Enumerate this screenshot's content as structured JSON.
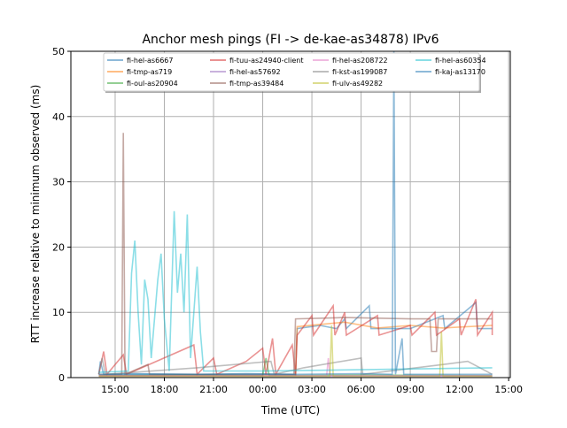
{
  "chart_data": {
    "type": "line",
    "title": "Anchor mesh pings (FI -> de-kae-as34878) IPv6",
    "xlabel": "Time (UTC)",
    "ylabel": "RTT increase relative to minimum observed (ms)",
    "xlim": [
      12.3,
      39.1
    ],
    "ylim": [
      0,
      50
    ],
    "x_unit": "hours since 00:00 of first day",
    "xticks": [
      15,
      18,
      21,
      24,
      27,
      30,
      33,
      36,
      39
    ],
    "xtick_labels": [
      "15:00",
      "18:00",
      "21:00",
      "00:00",
      "03:00",
      "06:00",
      "09:00",
      "12:00",
      "15:00"
    ],
    "yticks": [
      0,
      10,
      20,
      30,
      40,
      50
    ],
    "ytick_labels": [
      "0",
      "10",
      "20",
      "30",
      "40",
      "50"
    ],
    "grid": true,
    "legend_position": "top-center",
    "series": [
      {
        "name": "fi-hel-as6667",
        "color": "#1f77b4",
        "points": [
          [
            14,
            0.5
          ],
          [
            14.1,
            2.5
          ],
          [
            14.3,
            0.5
          ],
          [
            16,
            0.6
          ],
          [
            20,
            0.5
          ],
          [
            23,
            0.6
          ],
          [
            26,
            0.5
          ],
          [
            26.1,
            7.5
          ],
          [
            27.5,
            8
          ],
          [
            28.5,
            7.5
          ],
          [
            29,
            9
          ],
          [
            29.1,
            7.5
          ],
          [
            30.5,
            11
          ],
          [
            30.6,
            7.5
          ],
          [
            33,
            7.5
          ],
          [
            35,
            9.5
          ],
          [
            35.1,
            7.5
          ],
          [
            37,
            11.5
          ],
          [
            37.1,
            7.5
          ],
          [
            38,
            7.5
          ]
        ]
      },
      {
        "name": "fi-tmp-as719",
        "color": "#ff7f0e",
        "points": [
          [
            14,
            0.3
          ],
          [
            20,
            0.3
          ],
          [
            26,
            0.3
          ],
          [
            26.1,
            7.8
          ],
          [
            29,
            8.5
          ],
          [
            31,
            7.6
          ],
          [
            33,
            8
          ],
          [
            35,
            7.6
          ],
          [
            38,
            8
          ]
        ]
      },
      {
        "name": "fi-oul-as20904",
        "color": "#2ca02c",
        "points": [
          [
            14,
            0.3
          ],
          [
            19,
            0.4
          ],
          [
            24,
            0.3
          ],
          [
            24.2,
            3
          ],
          [
            24.4,
            0.3
          ],
          [
            30,
            0.4
          ],
          [
            38,
            0.3
          ]
        ]
      },
      {
        "name": "fi-tuu-as24940-client",
        "color": "#d62728",
        "points": [
          [
            14,
            0.5
          ],
          [
            14.3,
            4
          ],
          [
            14.5,
            0.5
          ],
          [
            15.5,
            3.5
          ],
          [
            15.7,
            0.5
          ],
          [
            19.8,
            5
          ],
          [
            20,
            0.5
          ],
          [
            21,
            3
          ],
          [
            21.2,
            0.5
          ],
          [
            23,
            2.5
          ],
          [
            24,
            4.5
          ],
          [
            24.2,
            0.5
          ],
          [
            24.6,
            6
          ],
          [
            24.8,
            0.5
          ],
          [
            25.8,
            5
          ],
          [
            26,
            0.3
          ],
          [
            26.1,
            6.5
          ],
          [
            27,
            9.5
          ],
          [
            27.1,
            6.5
          ],
          [
            28.3,
            11
          ],
          [
            28.4,
            6.5
          ],
          [
            29,
            10
          ],
          [
            29.1,
            6.5
          ],
          [
            31,
            9.5
          ],
          [
            31.1,
            6.5
          ],
          [
            33,
            8
          ],
          [
            33.1,
            6.5
          ],
          [
            34.5,
            10
          ],
          [
            34.6,
            6.5
          ],
          [
            36,
            9
          ],
          [
            36.1,
            6.5
          ],
          [
            37,
            12
          ],
          [
            37.1,
            6.5
          ],
          [
            38,
            10
          ],
          [
            38,
            6.5
          ]
        ]
      },
      {
        "name": "fi-hel-as57692",
        "color": "#9467bd",
        "points": [
          [
            14,
            0.2
          ],
          [
            26,
            0.2
          ],
          [
            38,
            0.2
          ]
        ]
      },
      {
        "name": "fi-tmp-as39484",
        "color": "#8c564b",
        "points": [
          [
            14,
            0.5
          ],
          [
            15.4,
            0.5
          ],
          [
            15.5,
            37.5
          ],
          [
            15.6,
            0.5
          ],
          [
            17,
            2
          ],
          [
            17.1,
            0.5
          ],
          [
            25.9,
            0.5
          ],
          [
            26,
            9
          ],
          [
            29,
            9.2
          ],
          [
            33,
            9
          ],
          [
            34.2,
            9
          ],
          [
            34.3,
            4
          ],
          [
            34.6,
            4
          ],
          [
            34.7,
            9
          ],
          [
            38,
            9
          ]
        ]
      },
      {
        "name": "fi-hel-as208722",
        "color": "#e377c2",
        "points": [
          [
            14,
            0.3
          ],
          [
            27.9,
            0.3
          ],
          [
            28,
            3
          ],
          [
            28.1,
            0.3
          ],
          [
            38,
            0.3
          ]
        ]
      },
      {
        "name": "fi-kst-as199087",
        "color": "#7f7f7f",
        "points": [
          [
            14,
            0.5
          ],
          [
            14.2,
            3
          ],
          [
            14.4,
            0.5
          ],
          [
            20,
            1.5
          ],
          [
            24.5,
            2.5
          ],
          [
            24.7,
            0.5
          ],
          [
            26.5,
            1.5
          ],
          [
            30,
            3
          ],
          [
            30.1,
            0.5
          ],
          [
            35,
            2
          ],
          [
            36.5,
            2.5
          ],
          [
            38,
            0.5
          ]
        ]
      },
      {
        "name": "fi-ulv-as49282",
        "color": "#bcbd22",
        "points": [
          [
            14,
            0.2
          ],
          [
            28.1,
            0.2
          ],
          [
            28.2,
            8
          ],
          [
            28.3,
            0.2
          ],
          [
            34.8,
            0.2
          ],
          [
            34.9,
            7
          ],
          [
            35,
            0.2
          ],
          [
            38,
            0.2
          ]
        ]
      },
      {
        "name": "fi-hel-as60354",
        "color": "#17becf",
        "points": [
          [
            14,
            0.8
          ],
          [
            15.8,
            1
          ],
          [
            16,
            16
          ],
          [
            16.2,
            21
          ],
          [
            16.4,
            10
          ],
          [
            16.6,
            2
          ],
          [
            16.8,
            15
          ],
          [
            17,
            12
          ],
          [
            17.2,
            3
          ],
          [
            17.6,
            15
          ],
          [
            17.8,
            19
          ],
          [
            18,
            9
          ],
          [
            18.3,
            1
          ],
          [
            18.6,
            25.5
          ],
          [
            18.8,
            13
          ],
          [
            19,
            19
          ],
          [
            19.2,
            10
          ],
          [
            19.4,
            25
          ],
          [
            19.6,
            3
          ],
          [
            20,
            17
          ],
          [
            20.2,
            7
          ],
          [
            20.4,
            1
          ],
          [
            24,
            1
          ],
          [
            30,
            1.2
          ],
          [
            38,
            1.5
          ]
        ]
      },
      {
        "name": "fi-kaj-as13170",
        "color": "#1f77b4",
        "points": [
          [
            14,
            0.5
          ],
          [
            26,
            0.5
          ],
          [
            30,
            0.6
          ],
          [
            31.9,
            0.5
          ],
          [
            32,
            50
          ],
          [
            32.1,
            0.5
          ],
          [
            32.5,
            6
          ],
          [
            32.6,
            0.5
          ],
          [
            38,
            0.5
          ]
        ]
      }
    ]
  }
}
